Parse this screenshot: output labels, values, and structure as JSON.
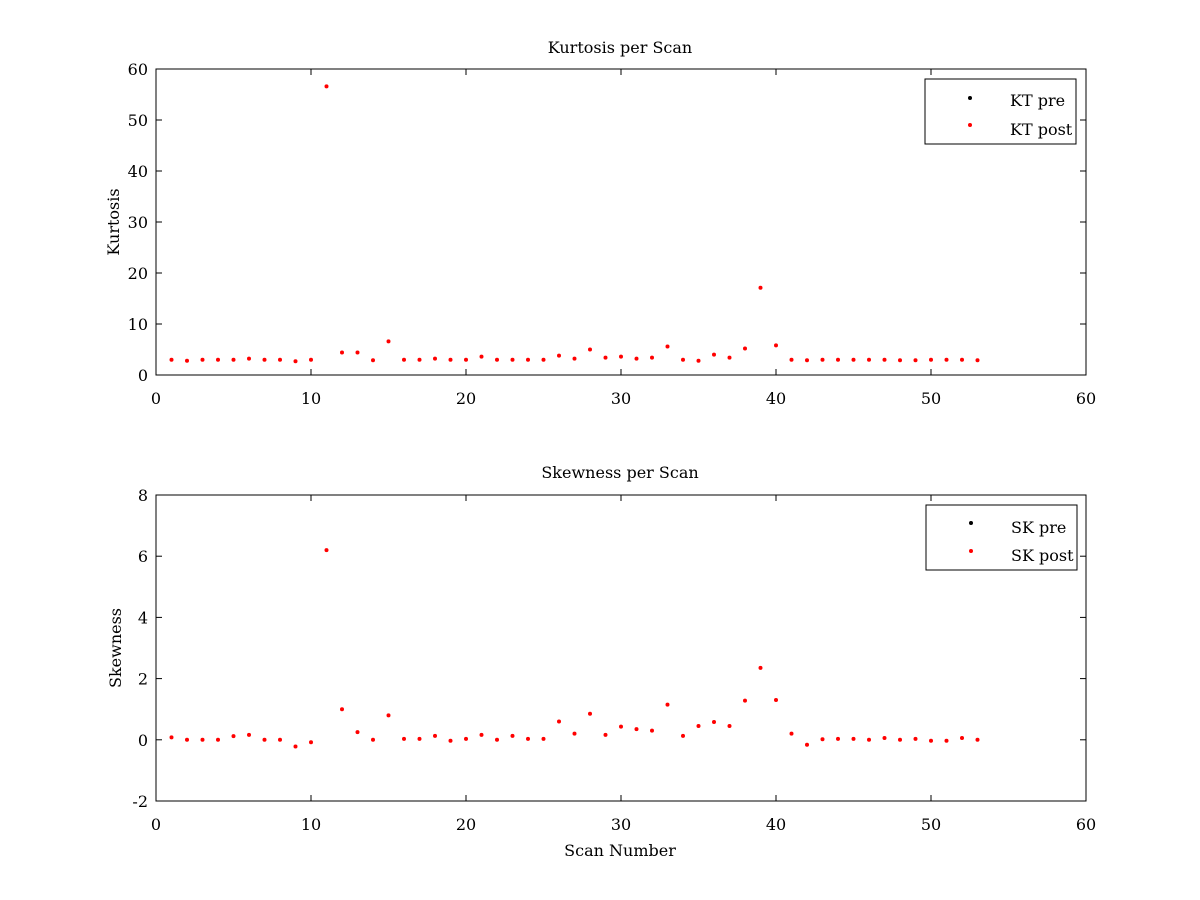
{
  "chart_data": [
    {
      "type": "scatter",
      "title": "Kurtosis per Scan",
      "xlabel": "",
      "ylabel": "Kurtosis",
      "xlim": [
        0,
        60
      ],
      "ylim": [
        0,
        60
      ],
      "xticks": [
        0,
        10,
        20,
        30,
        40,
        50,
        60
      ],
      "yticks": [
        0,
        10,
        20,
        30,
        40,
        50,
        60
      ],
      "grid": false,
      "legend_position": "top-right",
      "series": [
        {
          "name": "KT pre",
          "color": "#000000",
          "x": [],
          "y": []
        },
        {
          "name": "KT post",
          "color": "#ff0000",
          "x": [
            1,
            2,
            3,
            4,
            5,
            6,
            7,
            8,
            9,
            10,
            11,
            12,
            13,
            14,
            15,
            16,
            17,
            18,
            19,
            20,
            21,
            22,
            23,
            24,
            25,
            26,
            27,
            28,
            29,
            30,
            31,
            32,
            33,
            34,
            35,
            36,
            37,
            38,
            39,
            40,
            41,
            42,
            43,
            44,
            45,
            46,
            47,
            48,
            49,
            50,
            51,
            52,
            53
          ],
          "y": [
            3.0,
            2.8,
            3.0,
            3.0,
            3.0,
            3.2,
            3.0,
            3.0,
            2.7,
            3.0,
            56.6,
            4.4,
            4.4,
            2.9,
            6.6,
            3.0,
            3.0,
            3.2,
            3.0,
            3.0,
            3.6,
            3.0,
            3.0,
            3.0,
            3.0,
            3.8,
            3.2,
            5.0,
            3.4,
            3.6,
            3.2,
            3.4,
            5.6,
            3.0,
            2.8,
            4.0,
            3.4,
            5.2,
            17.1,
            5.8,
            3.0,
            2.9,
            3.0,
            3.0,
            3.0,
            3.0,
            3.0,
            2.9,
            2.9,
            3.0,
            3.0,
            3.0,
            2.9
          ]
        }
      ]
    },
    {
      "type": "scatter",
      "title": "Skewness per Scan",
      "xlabel": "Scan Number",
      "ylabel": "Skewness",
      "xlim": [
        0,
        60
      ],
      "ylim": [
        -2,
        8
      ],
      "xticks": [
        0,
        10,
        20,
        30,
        40,
        50,
        60
      ],
      "yticks": [
        -2,
        0,
        2,
        4,
        6,
        8
      ],
      "grid": false,
      "legend_position": "top-right",
      "series": [
        {
          "name": "SK pre",
          "color": "#000000",
          "x": [],
          "y": []
        },
        {
          "name": "SK post",
          "color": "#ff0000",
          "x": [
            1,
            2,
            3,
            4,
            5,
            6,
            7,
            8,
            9,
            10,
            11,
            12,
            13,
            14,
            15,
            16,
            17,
            18,
            19,
            20,
            21,
            22,
            23,
            24,
            25,
            26,
            27,
            28,
            29,
            30,
            31,
            32,
            33,
            34,
            35,
            36,
            37,
            38,
            39,
            40,
            41,
            42,
            43,
            44,
            45,
            46,
            47,
            48,
            49,
            50,
            51,
            52,
            53
          ],
          "y": [
            0.08,
            0.0,
            0.0,
            0.0,
            0.12,
            0.16,
            0.0,
            0.0,
            -0.22,
            -0.08,
            6.2,
            1.0,
            0.25,
            0.0,
            0.8,
            0.03,
            0.03,
            0.13,
            -0.03,
            0.03,
            0.16,
            0.0,
            0.13,
            0.03,
            0.03,
            0.6,
            0.2,
            0.85,
            0.16,
            0.43,
            0.35,
            0.3,
            1.15,
            0.13,
            0.45,
            0.58,
            0.45,
            1.28,
            2.35,
            1.3,
            0.2,
            -0.16,
            0.02,
            0.03,
            0.03,
            0.0,
            0.06,
            0.0,
            0.03,
            -0.03,
            -0.03,
            0.06,
            0.0
          ]
        }
      ]
    }
  ]
}
